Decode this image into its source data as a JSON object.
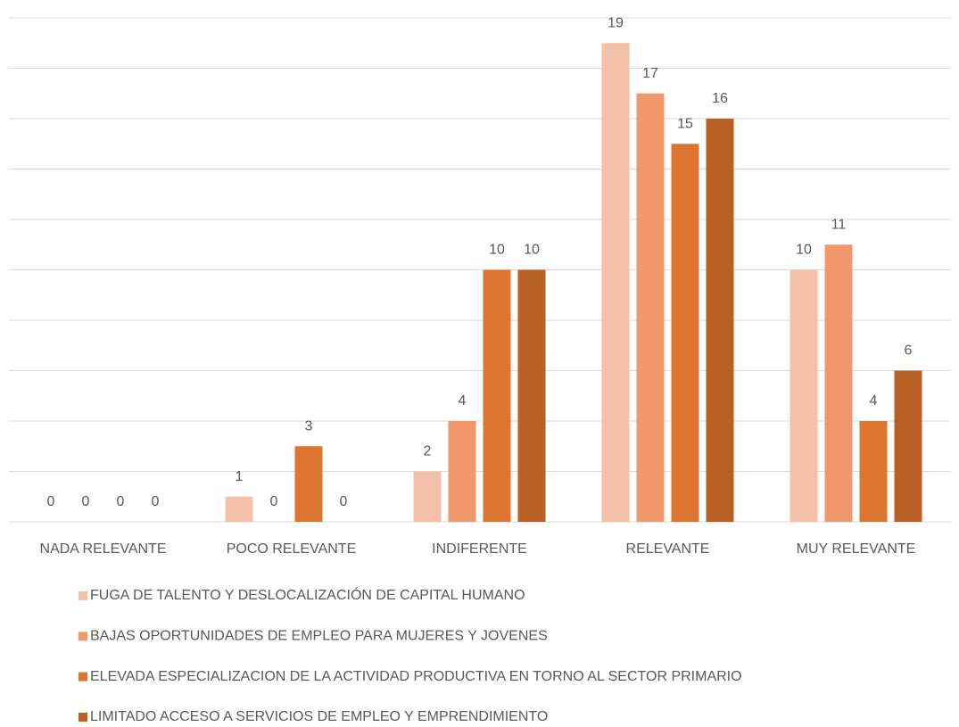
{
  "chart_data": {
    "type": "bar",
    "categories": [
      "NADA RELEVANTE",
      "POCO RELEVANTE",
      "INDIFERENTE",
      "RELEVANTE",
      "MUY RELEVANTE"
    ],
    "series": [
      {
        "name": "FUGA DE TALENTO Y DESLOCALIZACIÓN DE CAPITAL HUMANO",
        "color": "#f4c0a9",
        "values": [
          0,
          1,
          2,
          19,
          10
        ]
      },
      {
        "name": "BAJAS OPORTUNIDADES DE EMPLEO PARA MUJERES Y JOVENES",
        "color": "#f0986c",
        "values": [
          0,
          0,
          4,
          17,
          11
        ]
      },
      {
        "name": "ELEVADA ESPECIALIZACION DE LA ACTIVIDAD PRODUCTIVA EN TORNO AL SECTOR PRIMARIO",
        "color": "#dd7430",
        "values": [
          0,
          3,
          10,
          15,
          4
        ]
      },
      {
        "name": "LIMITADO ACCESO A SERVICIOS DE EMPLEO Y EMPRENDIMIENTO",
        "color": "#b85f24",
        "values": [
          0,
          0,
          10,
          16,
          6
        ]
      }
    ],
    "ylim": [
      0,
      20
    ],
    "yticks": [
      0,
      2,
      4,
      6,
      8,
      10,
      12,
      14,
      16,
      18,
      20
    ],
    "grid": true,
    "legend": "bottom"
  }
}
